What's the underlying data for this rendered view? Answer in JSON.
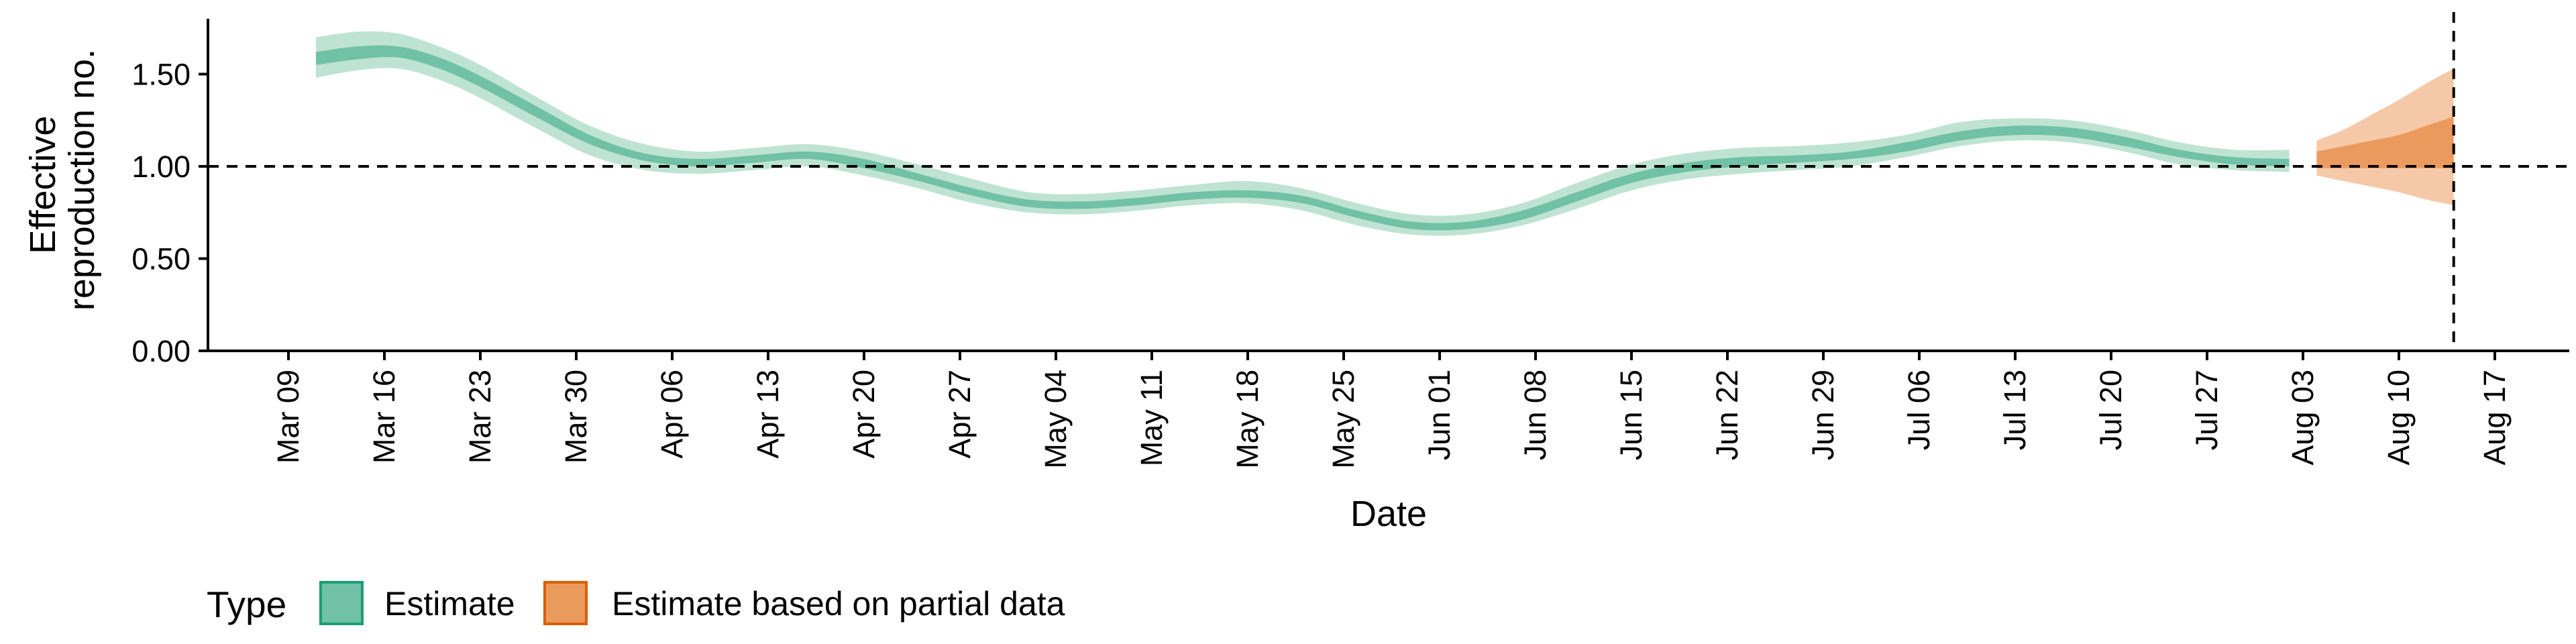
{
  "chart_data": {
    "type": "area",
    "xlabel": "Date",
    "ylabel_lines": [
      "Effective",
      "reproduction no."
    ],
    "ylim": [
      0,
      1.8
    ],
    "y_ticks": [
      {
        "value": 0.0,
        "label": "0.00"
      },
      {
        "value": 0.5,
        "label": "0.50"
      },
      {
        "value": 1.0,
        "label": "1.00"
      },
      {
        "value": 1.5,
        "label": "1.50"
      }
    ],
    "x_ticks": [
      "Mar 09",
      "Mar 16",
      "Mar 23",
      "Mar 30",
      "Apr 06",
      "Apr 13",
      "Apr 20",
      "Apr 27",
      "May 04",
      "May 11",
      "May 18",
      "May 25",
      "Jun 01",
      "Jun 08",
      "Jun 15",
      "Jun 22",
      "Jun 29",
      "Jul 06",
      "Jul 13",
      "Jul 20",
      "Jul 27",
      "Aug 03",
      "Aug 10",
      "Aug 17"
    ],
    "reference_hline": 1.0,
    "reference_vline_date": "Aug 14",
    "grid": false,
    "legend": {
      "title": "Type",
      "position": "bottom-left",
      "entries": [
        {
          "label": "Estimate",
          "fill": "#70c1a5",
          "border": "#1b9e77"
        },
        {
          "label": "Estimate based on partial data",
          "fill": "#eb9a5e",
          "border": "#d95f02"
        }
      ]
    },
    "series": [
      {
        "name": "Estimate",
        "color_outer": "#bfe3d3",
        "color_inner": "#70c1a5",
        "points": [
          {
            "date": "Mar 11",
            "lo90": 1.48,
            "lo50": 1.55,
            "hi50": 1.62,
            "hi90": 1.7
          },
          {
            "date": "Mar 14",
            "lo90": 1.52,
            "lo50": 1.58,
            "hi50": 1.65,
            "hi90": 1.73
          },
          {
            "date": "Mar 17",
            "lo90": 1.53,
            "lo50": 1.59,
            "hi50": 1.65,
            "hi90": 1.72
          },
          {
            "date": "Mar 20",
            "lo90": 1.47,
            "lo50": 1.53,
            "hi50": 1.59,
            "hi90": 1.65
          },
          {
            "date": "Mar 23",
            "lo90": 1.37,
            "lo50": 1.43,
            "hi50": 1.49,
            "hi90": 1.55
          },
          {
            "date": "Mar 27",
            "lo90": 1.21,
            "lo50": 1.27,
            "hi50": 1.33,
            "hi90": 1.38
          },
          {
            "date": "Mar 31",
            "lo90": 1.06,
            "lo50": 1.12,
            "hi50": 1.17,
            "hi90": 1.22
          },
          {
            "date": "Apr 04",
            "lo90": 0.98,
            "lo50": 1.03,
            "hi50": 1.07,
            "hi90": 1.12
          },
          {
            "date": "Apr 08",
            "lo90": 0.96,
            "lo50": 1.0,
            "hi50": 1.04,
            "hi90": 1.08
          },
          {
            "date": "Apr 12",
            "lo90": 0.98,
            "lo50": 1.02,
            "hi50": 1.06,
            "hi90": 1.1
          },
          {
            "date": "Apr 16",
            "lo90": 1.0,
            "lo50": 1.04,
            "hi50": 1.08,
            "hi90": 1.12
          },
          {
            "date": "Apr 20",
            "lo90": 0.95,
            "lo50": 0.99,
            "hi50": 1.04,
            "hi90": 1.08
          },
          {
            "date": "Apr 24",
            "lo90": 0.88,
            "lo50": 0.92,
            "hi50": 0.96,
            "hi90": 1.01
          },
          {
            "date": "Apr 28",
            "lo90": 0.8,
            "lo50": 0.84,
            "hi50": 0.88,
            "hi90": 0.93
          },
          {
            "date": "May 02",
            "lo90": 0.75,
            "lo50": 0.78,
            "hi50": 0.82,
            "hi90": 0.86
          },
          {
            "date": "May 06",
            "lo90": 0.74,
            "lo50": 0.77,
            "hi50": 0.81,
            "hi90": 0.85
          },
          {
            "date": "May 10",
            "lo90": 0.76,
            "lo50": 0.79,
            "hi50": 0.83,
            "hi90": 0.87
          },
          {
            "date": "May 14",
            "lo90": 0.79,
            "lo50": 0.82,
            "hi50": 0.86,
            "hi90": 0.9
          },
          {
            "date": "May 18",
            "lo90": 0.8,
            "lo50": 0.83,
            "hi50": 0.87,
            "hi90": 0.92
          },
          {
            "date": "May 22",
            "lo90": 0.76,
            "lo50": 0.8,
            "hi50": 0.84,
            "hi90": 0.88
          },
          {
            "date": "May 26",
            "lo90": 0.68,
            "lo50": 0.72,
            "hi50": 0.76,
            "hi90": 0.8
          },
          {
            "date": "May 30",
            "lo90": 0.63,
            "lo50": 0.66,
            "hi50": 0.7,
            "hi90": 0.74
          },
          {
            "date": "Jun 03",
            "lo90": 0.63,
            "lo50": 0.66,
            "hi50": 0.7,
            "hi90": 0.74
          },
          {
            "date": "Jun 07",
            "lo90": 0.68,
            "lo50": 0.71,
            "hi50": 0.76,
            "hi90": 0.8
          },
          {
            "date": "Jun 11",
            "lo90": 0.77,
            "lo50": 0.81,
            "hi50": 0.86,
            "hi90": 0.91
          },
          {
            "date": "Jun 15",
            "lo90": 0.87,
            "lo50": 0.91,
            "hi50": 0.96,
            "hi90": 1.01
          },
          {
            "date": "Jun 19",
            "lo90": 0.93,
            "lo50": 0.97,
            "hi50": 1.02,
            "hi90": 1.07
          },
          {
            "date": "Jun 23",
            "lo90": 0.96,
            "lo50": 1.0,
            "hi50": 1.05,
            "hi90": 1.1
          },
          {
            "date": "Jun 27",
            "lo90": 0.98,
            "lo50": 1.02,
            "hi50": 1.06,
            "hi90": 1.11
          },
          {
            "date": "Jul 01",
            "lo90": 1.0,
            "lo50": 1.04,
            "hi50": 1.08,
            "hi90": 1.13
          },
          {
            "date": "Jul 05",
            "lo90": 1.05,
            "lo50": 1.08,
            "hi50": 1.13,
            "hi90": 1.17
          },
          {
            "date": "Jul 09",
            "lo90": 1.11,
            "lo50": 1.14,
            "hi50": 1.19,
            "hi90": 1.24
          },
          {
            "date": "Jul 13",
            "lo90": 1.14,
            "lo50": 1.17,
            "hi50": 1.22,
            "hi90": 1.26
          },
          {
            "date": "Jul 17",
            "lo90": 1.13,
            "lo50": 1.16,
            "hi50": 1.21,
            "hi90": 1.25
          },
          {
            "date": "Jul 21",
            "lo90": 1.08,
            "lo50": 1.11,
            "hi50": 1.16,
            "hi90": 1.2
          },
          {
            "date": "Jul 25",
            "lo90": 1.01,
            "lo50": 1.05,
            "hi50": 1.09,
            "hi90": 1.13
          },
          {
            "date": "Jul 29",
            "lo90": 0.98,
            "lo50": 1.01,
            "hi50": 1.05,
            "hi90": 1.09
          },
          {
            "date": "Aug 02",
            "lo90": 0.97,
            "lo50": 1.0,
            "hi50": 1.04,
            "hi90": 1.09
          }
        ]
      },
      {
        "name": "Estimate based on partial data",
        "color_outer": "#f5c9a7",
        "color_inner": "#eb9a5e",
        "points": [
          {
            "date": "Aug 04",
            "lo90": 0.95,
            "lo50": 0.99,
            "hi50": 1.08,
            "hi90": 1.14
          },
          {
            "date": "Aug 06",
            "lo90": 0.92,
            "lo50": 0.99,
            "hi50": 1.11,
            "hi90": 1.2
          },
          {
            "date": "Aug 08",
            "lo90": 0.89,
            "lo50": 0.99,
            "hi50": 1.14,
            "hi90": 1.28
          },
          {
            "date": "Aug 10",
            "lo90": 0.86,
            "lo50": 0.99,
            "hi50": 1.17,
            "hi90": 1.36
          },
          {
            "date": "Aug 12",
            "lo90": 0.82,
            "lo50": 0.99,
            "hi50": 1.22,
            "hi90": 1.45
          },
          {
            "date": "Aug 14",
            "lo90": 0.79,
            "lo50": 0.99,
            "hi50": 1.27,
            "hi90": 1.53
          }
        ]
      }
    ]
  }
}
